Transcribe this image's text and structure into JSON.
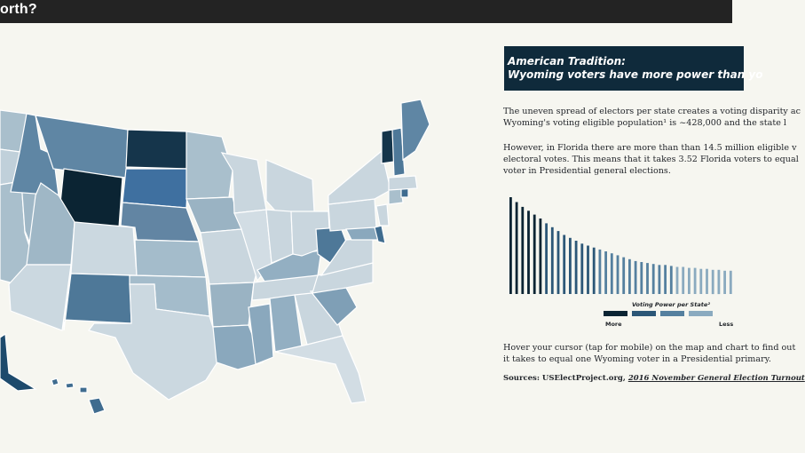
{
  "header": {
    "title": "orth?"
  },
  "banner": {
    "line1": "American Tradition:",
    "line2": "Wyoming voters have more power than yo"
  },
  "intro": {
    "line1": "The uneven spread of electors per state creates a voting disparity ac",
    "line2": "Wyoming's voting eligible population¹ is ~428,000 and the state l"
  },
  "florida": {
    "line1": "However, in Florida there are more than than 14.5 million eligible v",
    "line2": "electoral votes. This means that it takes 3.52 Florida voters to equal",
    "line3": "voter in Presidential general elections."
  },
  "chart_data": {
    "type": "bar",
    "values": [
      100,
      95,
      90,
      86,
      82,
      78,
      73,
      69,
      65,
      61,
      58,
      55,
      52,
      50,
      48,
      46,
      44,
      42,
      40,
      38,
      36,
      34,
      33,
      32,
      31,
      30,
      30,
      29,
      28,
      28,
      27,
      27,
      26,
      26,
      25,
      25,
      24,
      24
    ],
    "ylim": [
      0,
      100
    ]
  },
  "legend": {
    "title": "Voting Power per State²",
    "more_label": "More",
    "less_label": "Less",
    "colors": [
      "#0b2433",
      "#2c5777",
      "#55809f",
      "#8aaabf"
    ]
  },
  "hover": {
    "line1": "Hover your cursor (tap for mobile) on the map and chart to find out",
    "line2": "it takes to equal one Wyoming voter in a Presidential primary."
  },
  "sources": {
    "label": "Sources: USElectProject.org,",
    "link": "2016 November General Election Turnout"
  },
  "map": {
    "states": [
      {
        "name": "WA",
        "color": "#a9bfcc"
      },
      {
        "name": "OR",
        "color": "#c0d0da"
      },
      {
        "name": "CA",
        "color": "#a9bfcc"
      },
      {
        "name": "NV",
        "color": "#9fb7c6"
      },
      {
        "name": "ID",
        "color": "#5f86a4"
      },
      {
        "name": "MT",
        "color": "#5f86a4"
      },
      {
        "name": "WY",
        "color": "#0b2433"
      },
      {
        "name": "UT",
        "color": "#9fb7c6"
      },
      {
        "name": "AZ",
        "color": "#cbd8e0"
      },
      {
        "name": "CO",
        "color": "#cbd8e0"
      },
      {
        "name": "NM",
        "color": "#4e7898"
      },
      {
        "name": "ND",
        "color": "#15354b"
      },
      {
        "name": "SD",
        "color": "#3f70a0"
      },
      {
        "name": "NE",
        "color": "#6285a3"
      },
      {
        "name": "KS",
        "color": "#a4bccb"
      },
      {
        "name": "OK",
        "color": "#a4bccb"
      },
      {
        "name": "TX",
        "color": "#cbd8e0"
      },
      {
        "name": "MN",
        "color": "#a9bfcc"
      },
      {
        "name": "IA",
        "color": "#9ab3c3"
      },
      {
        "name": "MO",
        "color": "#c9d6de"
      },
      {
        "name": "AR",
        "color": "#9ab3c3"
      },
      {
        "name": "LA",
        "color": "#8aa8bd"
      },
      {
        "name": "WI",
        "color": "#c9d6de"
      },
      {
        "name": "IL",
        "color": "#d2dde4"
      },
      {
        "name": "MS",
        "color": "#8aa8bd"
      },
      {
        "name": "MI",
        "color": "#c9d6de"
      },
      {
        "name": "IN",
        "color": "#c9d6de"
      },
      {
        "name": "KY",
        "color": "#93afc2"
      },
      {
        "name": "TN",
        "color": "#c9d6de"
      },
      {
        "name": "AL",
        "color": "#93afc2"
      },
      {
        "name": "OH",
        "color": "#c9d6de"
      },
      {
        "name": "WV",
        "color": "#4e7898"
      },
      {
        "name": "GA",
        "color": "#c9d6de"
      },
      {
        "name": "FL",
        "color": "#d2dde4"
      },
      {
        "name": "SC",
        "color": "#7f9fb6"
      },
      {
        "name": "NC",
        "color": "#c9d6de"
      },
      {
        "name": "VA",
        "color": "#c9d6de"
      },
      {
        "name": "PA",
        "color": "#c9d6de"
      },
      {
        "name": "NY",
        "color": "#c9d6de"
      },
      {
        "name": "MD",
        "color": "#8aa8bd"
      },
      {
        "name": "DE",
        "color": "#3f6c8f"
      },
      {
        "name": "NJ",
        "color": "#c9d6de"
      },
      {
        "name": "CT",
        "color": "#a9bfcc"
      },
      {
        "name": "RI",
        "color": "#3f6c8f"
      },
      {
        "name": "MA",
        "color": "#c9d6de"
      },
      {
        "name": "VT",
        "color": "#15354b"
      },
      {
        "name": "NH",
        "color": "#4e7898"
      },
      {
        "name": "ME",
        "color": "#5f86a4"
      },
      {
        "name": "AK",
        "color": "#1d4a6c"
      },
      {
        "name": "HI",
        "color": "#3f6c8f"
      }
    ]
  }
}
